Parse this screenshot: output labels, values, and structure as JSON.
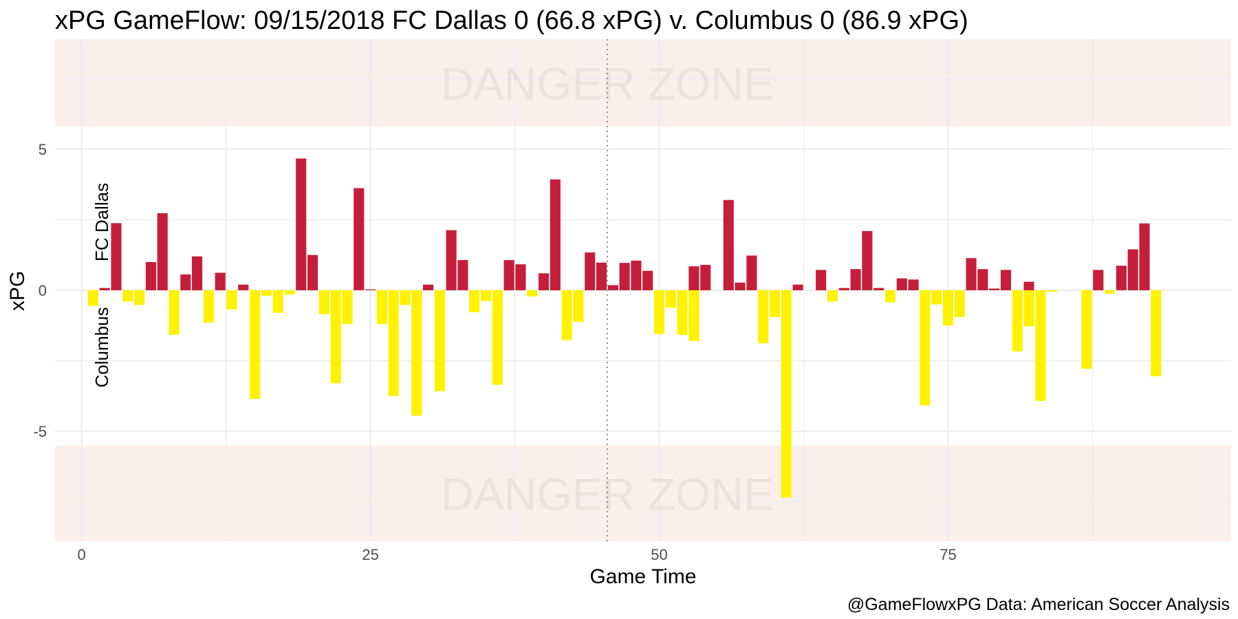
{
  "chart_data": {
    "type": "bar",
    "title": "xPG GameFlow: 09/15/2018 FC Dallas 0 (66.8 xPG) v. Columbus 0 (86.9 xPG)",
    "xlabel": "Game Time",
    "ylabel": "xPG",
    "xlim": [
      -2.3,
      99.5
    ],
    "ylim": [
      -8.9,
      8.9
    ],
    "x_ticks": [
      0,
      25,
      50,
      75
    ],
    "y_ticks": [
      -5,
      0,
      5
    ],
    "y_tick_labels": [
      "-5",
      "0",
      "5"
    ],
    "grid": true,
    "halftime_line": 45.5,
    "team_labels": {
      "top": "FC Dallas",
      "bottom": "Columbus"
    },
    "danger_zone": {
      "label": "DANGER ZONE",
      "upper": [
        5.8,
        8.9
      ],
      "lower": [
        -8.9,
        -5.5
      ]
    },
    "colors": {
      "FC Dallas": "#c41e3a",
      "Columbus": "#fff200",
      "danger_band": "#fbefec"
    },
    "series": [
      {
        "name": "FC Dallas",
        "x": [
          2,
          3,
          6,
          7,
          9,
          10,
          12,
          14,
          19,
          20,
          24,
          25,
          30,
          32,
          33,
          37,
          38,
          40,
          41,
          44,
          45,
          46,
          47,
          48,
          49,
          53,
          54,
          56,
          57,
          58,
          62,
          64,
          66,
          67,
          68,
          69,
          71,
          72,
          77,
          78,
          79,
          80,
          82,
          88,
          90,
          91,
          92
        ],
        "values": [
          0.08,
          2.38,
          1.0,
          2.73,
          0.56,
          1.2,
          0.62,
          0.2,
          4.67,
          1.25,
          3.62,
          0.03,
          0.2,
          2.13,
          1.07,
          1.07,
          0.92,
          0.6,
          3.93,
          1.34,
          0.98,
          0.18,
          0.97,
          1.05,
          0.69,
          0.85,
          0.9,
          3.2,
          0.27,
          1.23,
          0.2,
          0.72,
          0.08,
          0.75,
          2.1,
          0.08,
          0.42,
          0.38,
          1.14,
          0.75,
          0.06,
          0.72,
          0.3,
          0.72,
          0.87,
          1.45,
          2.37
        ]
      },
      {
        "name": "Columbus",
        "x": [
          1,
          4,
          5,
          8,
          11,
          13,
          15,
          16,
          17,
          18,
          21,
          22,
          23,
          26,
          27,
          28,
          29,
          31,
          34,
          35,
          36,
          39,
          42,
          43,
          50,
          51,
          52,
          53,
          59,
          60,
          61,
          65,
          70,
          73,
          74,
          75,
          76,
          81,
          82,
          83,
          84,
          87,
          89,
          93
        ],
        "values": [
          -0.55,
          -0.4,
          -0.52,
          -1.58,
          -1.15,
          -0.68,
          -3.85,
          -0.2,
          -0.8,
          -0.15,
          -0.85,
          -3.3,
          -1.2,
          -1.2,
          -3.75,
          -0.52,
          -4.45,
          -3.58,
          -0.78,
          -0.38,
          -3.35,
          -0.22,
          -1.77,
          -1.12,
          -1.55,
          -0.62,
          -1.58,
          -1.8,
          -1.88,
          -0.95,
          -7.35,
          -0.4,
          -0.43,
          -4.08,
          -0.5,
          -1.25,
          -0.95,
          -2.17,
          -1.28,
          -3.92,
          -0.05,
          -2.78,
          -0.12,
          -3.05
        ]
      }
    ]
  },
  "caption": "@GameFlowxPG Data: American Soccer Analysis"
}
